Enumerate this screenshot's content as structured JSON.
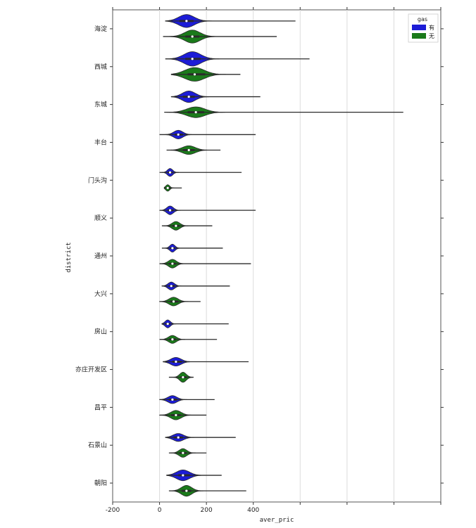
{
  "chart_data": {
    "type": "violin",
    "title": "",
    "xlabel": "aver_pric",
    "ylabel": "district",
    "xlim": [
      -200,
      1200
    ],
    "x_ticks": [
      -200,
      0,
      200,
      400,
      600,
      800,
      1000,
      1200
    ],
    "x_tick_labels": [
      "-200",
      "0",
      "200",
      "400",
      "",
      "",
      "",
      ""
    ],
    "grid": "vertical",
    "legend": {
      "title": "gas",
      "position": "top-right",
      "entries": [
        {
          "label": "有",
          "color": "#1c1cd6"
        },
        {
          "label": "无",
          "color": "#1a7a1a"
        }
      ]
    },
    "categories": [
      "海淀",
      "西城",
      "东城",
      "丰台",
      "门头沟",
      "顺义",
      "通州",
      "大兴",
      "房山",
      "亦庄开发区",
      "昌平",
      "石景山",
      "朝阳"
    ],
    "series": [
      {
        "name": "有",
        "color": "#1c1cd6",
        "min": [
          25,
          25,
          50,
          0,
          0,
          0,
          10,
          10,
          10,
          15,
          0,
          25,
          30
        ],
        "q1": [
          85,
          110,
          100,
          65,
          35,
          35,
          45,
          40,
          25,
          55,
          40,
          60,
          80
        ],
        "median": [
          115,
          140,
          125,
          80,
          45,
          45,
          55,
          50,
          35,
          70,
          55,
          80,
          100
        ],
        "q3": [
          145,
          175,
          150,
          100,
          55,
          60,
          65,
          65,
          45,
          95,
          75,
          100,
          130
        ],
        "max": [
          580,
          640,
          430,
          410,
          350,
          410,
          270,
          300,
          295,
          380,
          235,
          325,
          265
        ],
        "width": [
          0.9,
          1.0,
          0.8,
          0.6,
          0.55,
          0.6,
          0.55,
          0.55,
          0.55,
          0.6,
          0.55,
          0.55,
          0.75
        ]
      },
      {
        "name": "无",
        "color": "#1a7a1a",
        "min": [
          15,
          50,
          20,
          30,
          20,
          10,
          0,
          0,
          0,
          40,
          0,
          40,
          40
        ],
        "q1": [
          110,
          120,
          120,
          100,
          30,
          55,
          40,
          45,
          40,
          90,
          50,
          85,
          95
        ],
        "median": [
          140,
          150,
          155,
          125,
          35,
          70,
          55,
          60,
          55,
          100,
          70,
          100,
          115
        ],
        "q3": [
          170,
          195,
          190,
          150,
          45,
          85,
          70,
          80,
          70,
          115,
          90,
          115,
          135
        ],
        "max": [
          500,
          345,
          1040,
          260,
          95,
          225,
          390,
          175,
          245,
          145,
          200,
          200,
          370
        ],
        "width": [
          0.9,
          0.95,
          0.75,
          0.6,
          0.45,
          0.6,
          0.6,
          0.6,
          0.55,
          0.7,
          0.65,
          0.6,
          0.75
        ]
      }
    ]
  }
}
